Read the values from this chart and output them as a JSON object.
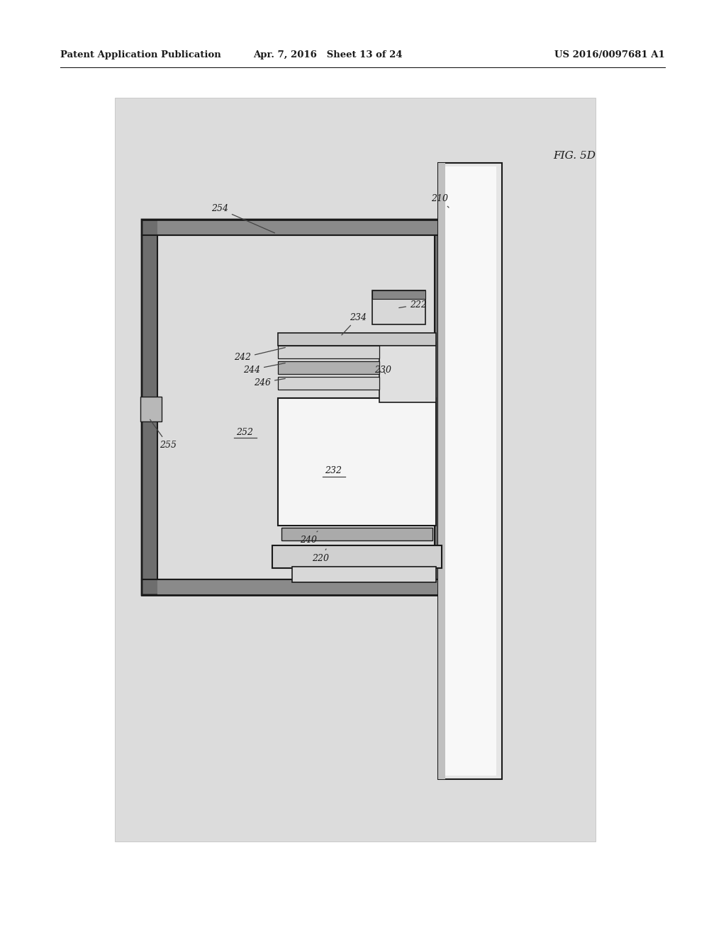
{
  "header_left": "Patent Application Publication",
  "header_center": "Apr. 7, 2016   Sheet 13 of 24",
  "header_right": "US 2016/0097681 A1",
  "fig_label": "FIG. 5D",
  "bg_color": "#ffffff",
  "diagram_bg": "#dcdcdc",
  "dark": "#1a1a1a",
  "frame_gray": "#6e6e6e",
  "comp_fill": "#f0f0f0",
  "comp_mid": "#d0d0d0",
  "comp_dark": "#999999"
}
